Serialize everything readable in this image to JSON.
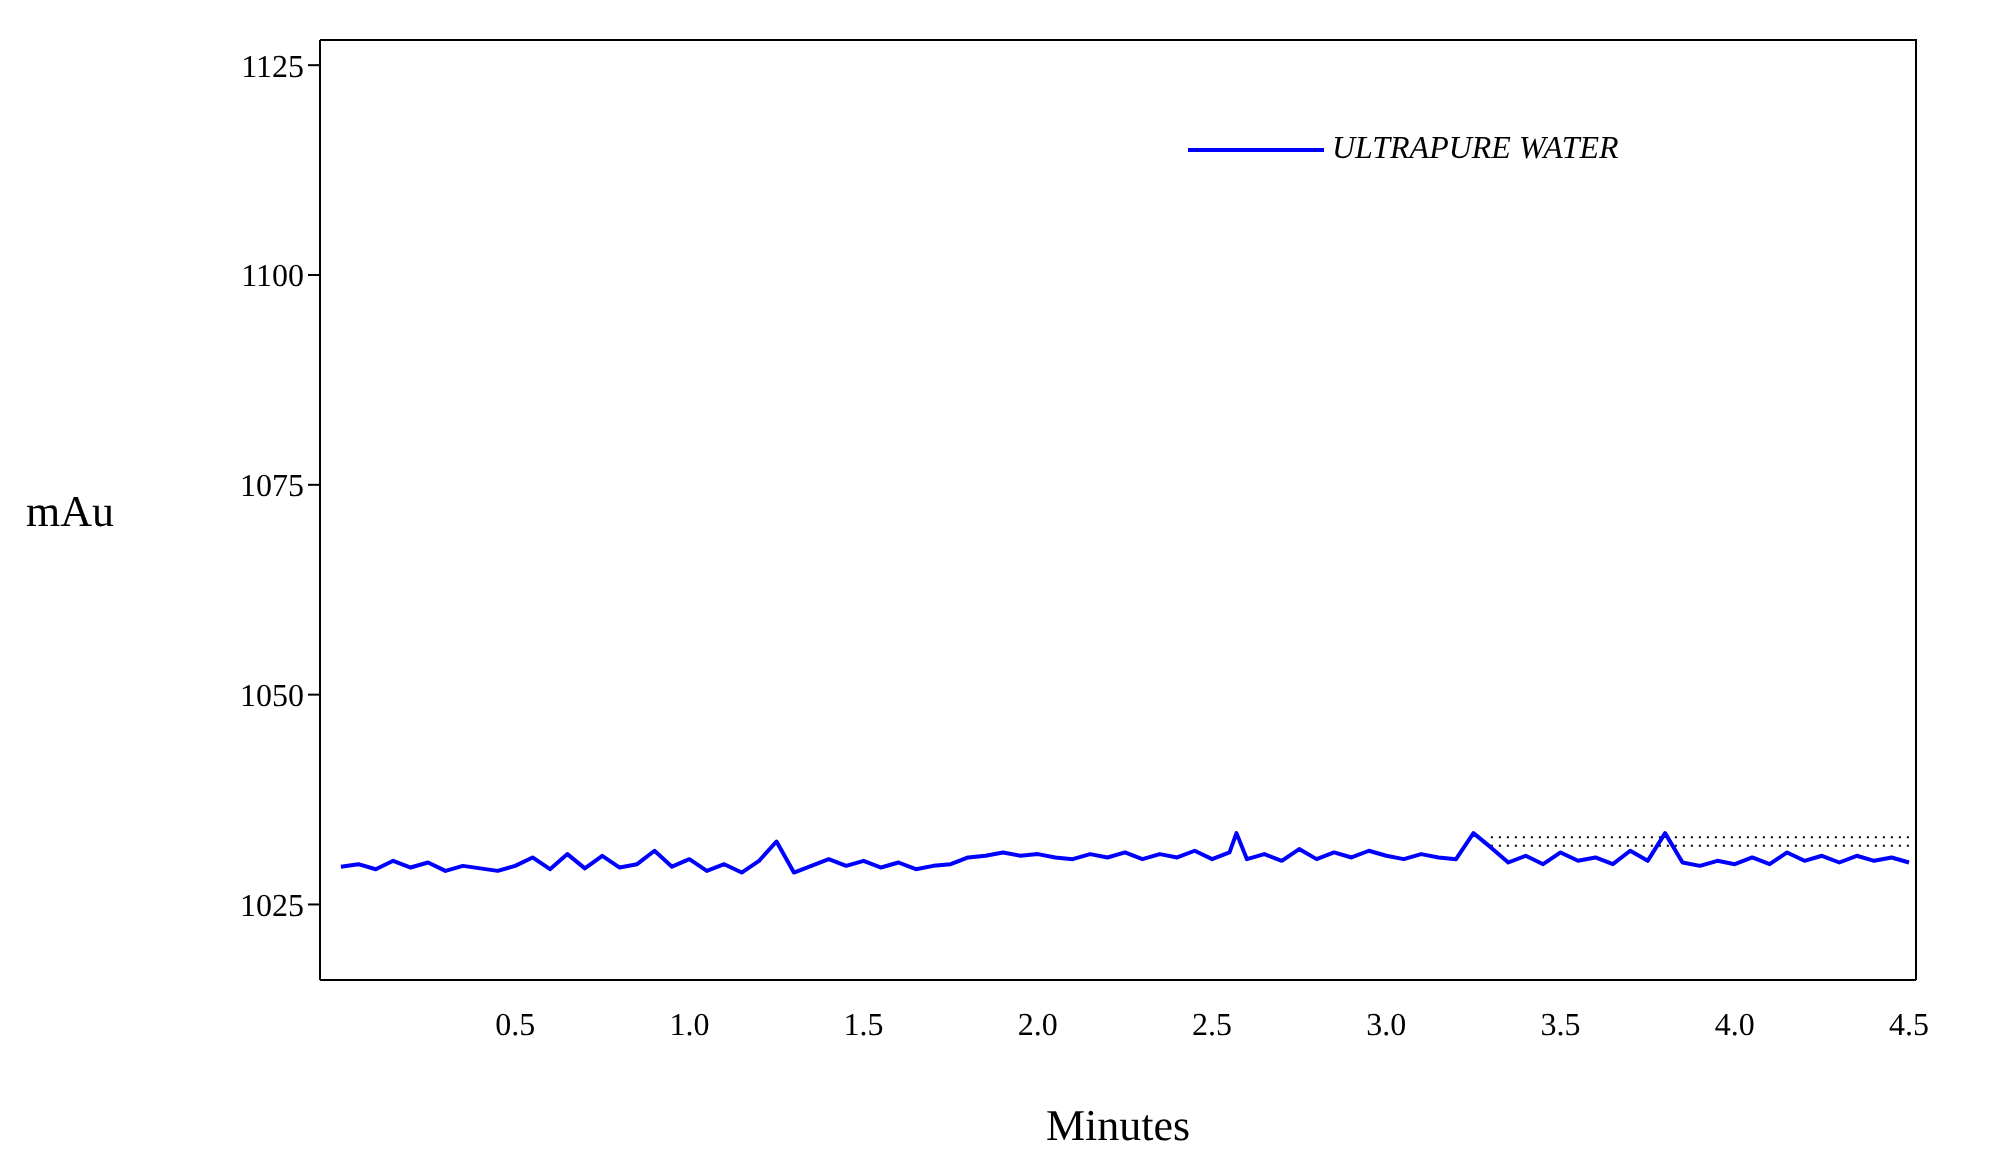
{
  "chart_data": {
    "type": "line",
    "xlabel": "Minutes",
    "ylabel": "mAu",
    "xlim": [
      -0.06,
      4.52
    ],
    "xticks": [
      0.5,
      {
        "value": 1,
        "label": "1.0"
      },
      1.5,
      {
        "value": 2,
        "label": "2.0"
      },
      2.5,
      {
        "value": 3,
        "label": "3.0"
      },
      3.5,
      {
        "value": 4,
        "label": "4.0"
      },
      4.5
    ],
    "ylim": [
      1016,
      1128
    ],
    "yticks": [
      1025,
      1050,
      1075,
      1100,
      1125
    ],
    "legend": "top right",
    "marker": "none",
    "line_style": "solid",
    "x": [
      0,
      0.05,
      0.1,
      0.15,
      0.2,
      0.25,
      0.3,
      0.35,
      0.4,
      0.45,
      0.5,
      0.55,
      0.6,
      0.65,
      0.7,
      0.75,
      0.8,
      0.85,
      0.9,
      0.95,
      1.0,
      1.05,
      1.1,
      1.15,
      1.2,
      1.25,
      1.3,
      1.35,
      1.4,
      1.45,
      1.5,
      1.55,
      1.6,
      1.65,
      1.7,
      1.75,
      1.8,
      1.85,
      1.9,
      1.95,
      2.0,
      2.05,
      2.1,
      2.15,
      2.2,
      2.25,
      2.3,
      2.35,
      2.4,
      2.45,
      2.5,
      2.55,
      2.57,
      2.6,
      2.65,
      2.7,
      2.75,
      2.8,
      2.85,
      2.9,
      2.95,
      3.0,
      3.05,
      3.1,
      3.15,
      3.2,
      3.25,
      3.3,
      3.35,
      3.4,
      3.45,
      3.5,
      3.55,
      3.6,
      3.65,
      3.7,
      3.75,
      3.8,
      3.85,
      3.9,
      3.95,
      4.0,
      4.05,
      4.1,
      4.15,
      4.2,
      4.25,
      4.3,
      4.35,
      4.4,
      4.45,
      4.5
    ],
    "series": [
      {
        "name": "ULTRAPURE WATER",
        "color": "#0000ff",
        "values": [
          1029.5,
          1029.8,
          1029.2,
          1030.2,
          1029.4,
          1030.0,
          1029.0,
          1029.6,
          1029.3,
          1029.0,
          1029.6,
          1030.6,
          1029.2,
          1031.0,
          1029.3,
          1030.8,
          1029.4,
          1029.8,
          1031.4,
          1029.5,
          1030.4,
          1029.0,
          1029.8,
          1028.8,
          1030.2,
          1032.5,
          1028.8,
          1029.6,
          1030.4,
          1029.6,
          1030.2,
          1029.4,
          1030.0,
          1029.2,
          1029.6,
          1029.8,
          1030.6,
          1030.8,
          1031.2,
          1030.8,
          1031.0,
          1030.6,
          1030.4,
          1031.0,
          1030.6,
          1031.2,
          1030.4,
          1031.0,
          1030.6,
          1031.4,
          1030.4,
          1031.2,
          1033.5,
          1030.4,
          1031.0,
          1030.2,
          1031.6,
          1030.4,
          1031.2,
          1030.6,
          1031.4,
          1030.8,
          1030.4,
          1031.0,
          1030.6,
          1030.4,
          1033.5,
          1031.8,
          1030.0,
          1030.8,
          1029.8,
          1031.2,
          1030.2,
          1030.6,
          1029.8,
          1031.4,
          1030.2,
          1033.5,
          1030.0,
          1029.6,
          1030.2,
          1029.8,
          1030.6,
          1029.8,
          1031.2,
          1030.2,
          1030.8,
          1030.0,
          1030.8,
          1030.2,
          1030.6,
          1030.0
        ]
      },
      {
        "color": "#000000",
        "line_style": "dotted",
        "values": [
          null,
          null,
          null,
          null,
          null,
          null,
          null,
          null,
          null,
          null,
          null,
          null,
          null,
          null,
          null,
          null,
          null,
          null,
          null,
          null,
          null,
          null,
          null,
          null,
          null,
          null,
          null,
          null,
          null,
          null,
          null,
          null,
          null,
          null,
          null,
          null,
          null,
          null,
          null,
          null,
          null,
          null,
          null,
          null,
          null,
          null,
          null,
          null,
          null,
          null,
          null,
          null,
          null,
          null,
          null,
          null,
          null,
          null,
          null,
          null,
          null,
          null,
          null,
          null,
          null,
          null,
          null,
          1033,
          1033,
          1033,
          1033,
          1033,
          1033,
          1033,
          1033,
          1033,
          1033,
          1033,
          1033,
          1033,
          1033,
          1033,
          1033,
          1033,
          1033,
          1033,
          1033,
          1033,
          1033,
          1033,
          1033,
          1033
        ]
      },
      {
        "color": "#000000",
        "line_style": "dotted",
        "values": [
          null,
          null,
          null,
          null,
          null,
          null,
          null,
          null,
          null,
          null,
          null,
          null,
          null,
          null,
          null,
          null,
          null,
          null,
          null,
          null,
          null,
          null,
          null,
          null,
          null,
          null,
          null,
          null,
          null,
          null,
          null,
          null,
          null,
          null,
          null,
          null,
          null,
          null,
          null,
          null,
          null,
          null,
          null,
          null,
          null,
          null,
          null,
          null,
          null,
          null,
          null,
          null,
          null,
          null,
          null,
          null,
          null,
          null,
          null,
          null,
          null,
          null,
          null,
          null,
          null,
          null,
          null,
          1032,
          1032,
          1032,
          1032,
          1032,
          1032,
          1032,
          1032,
          1032,
          1032,
          1032,
          1032,
          1032,
          1032,
          1032,
          1032,
          1032,
          1032,
          1032,
          1032,
          1032,
          1032,
          1032,
          1032,
          1032
        ]
      }
    ]
  }
}
